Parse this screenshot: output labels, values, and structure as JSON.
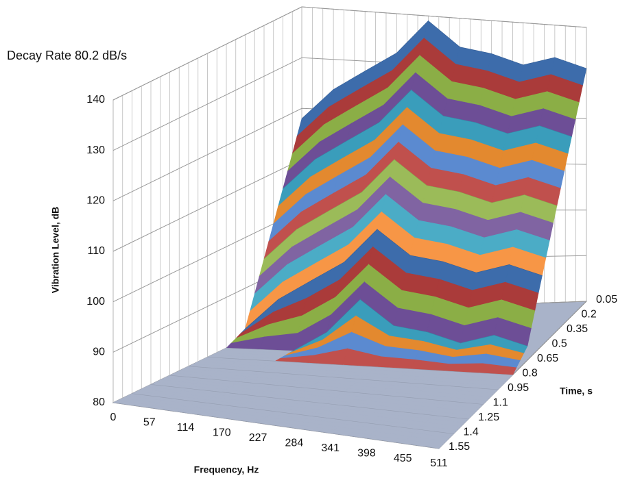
{
  "chart_data": {
    "type": "surface",
    "title": "Decay Rate 80.2 dB/s",
    "x_label": "Frequency, Hz",
    "y_label": "Time, s",
    "z_label": "Vibration Level, dB",
    "categories": [
      "0",
      "57",
      "114",
      "170",
      "227",
      "284",
      "341",
      "398",
      "455",
      "511"
    ],
    "series": [
      {
        "name": "0.05",
        "values": [
          118,
          124,
          128,
          132,
          139,
          134,
          133,
          131,
          133,
          131
        ]
      },
      {
        "name": "0.2",
        "values": [
          106,
          112,
          116,
          120,
          127,
          122,
          121,
          119,
          121,
          119
        ]
      },
      {
        "name": "0.35",
        "values": [
          94,
          100,
          104,
          108,
          115,
          110,
          109,
          107,
          109,
          107
        ]
      },
      {
        "name": "0.5",
        "values": [
          82,
          88,
          92,
          96,
          103,
          98,
          97,
          95,
          97,
          95
        ]
      },
      {
        "name": "0.65",
        "values": [
          80,
          80,
          80,
          84,
          91,
          86,
          85,
          83,
          85,
          83
        ]
      },
      {
        "name": "0.8",
        "values": [
          80,
          80,
          80,
          80,
          80,
          80,
          80,
          80,
          80,
          80
        ]
      },
      {
        "name": "0.95",
        "values": [
          80,
          80,
          80,
          80,
          80,
          80,
          80,
          80,
          80,
          80
        ]
      },
      {
        "name": "1.1",
        "values": [
          80,
          80,
          80,
          80,
          80,
          80,
          80,
          80,
          80,
          80
        ]
      },
      {
        "name": "1.25",
        "values": [
          80,
          80,
          80,
          80,
          80,
          80,
          80,
          80,
          80,
          80
        ]
      },
      {
        "name": "1.4",
        "values": [
          80,
          80,
          80,
          80,
          80,
          80,
          80,
          80,
          80,
          80
        ]
      },
      {
        "name": "1.55",
        "values": [
          80,
          80,
          80,
          80,
          80,
          80,
          80,
          80,
          80,
          80
        ]
      }
    ],
    "colors": [
      "#3d6cab",
      "#aa3b3a",
      "#8bae46",
      "#6d4e96",
      "#3a9dbb",
      "#e3892f",
      "#5b8ad0",
      "#c0504d",
      "#9bbb59",
      "#8064a2",
      "#4bacc6",
      "#f79646"
    ],
    "floor_color": "#a9b3c9",
    "zlim": [
      80,
      140
    ],
    "zticks": [
      80,
      90,
      100,
      110,
      120,
      130,
      140
    ],
    "grid": true
  }
}
